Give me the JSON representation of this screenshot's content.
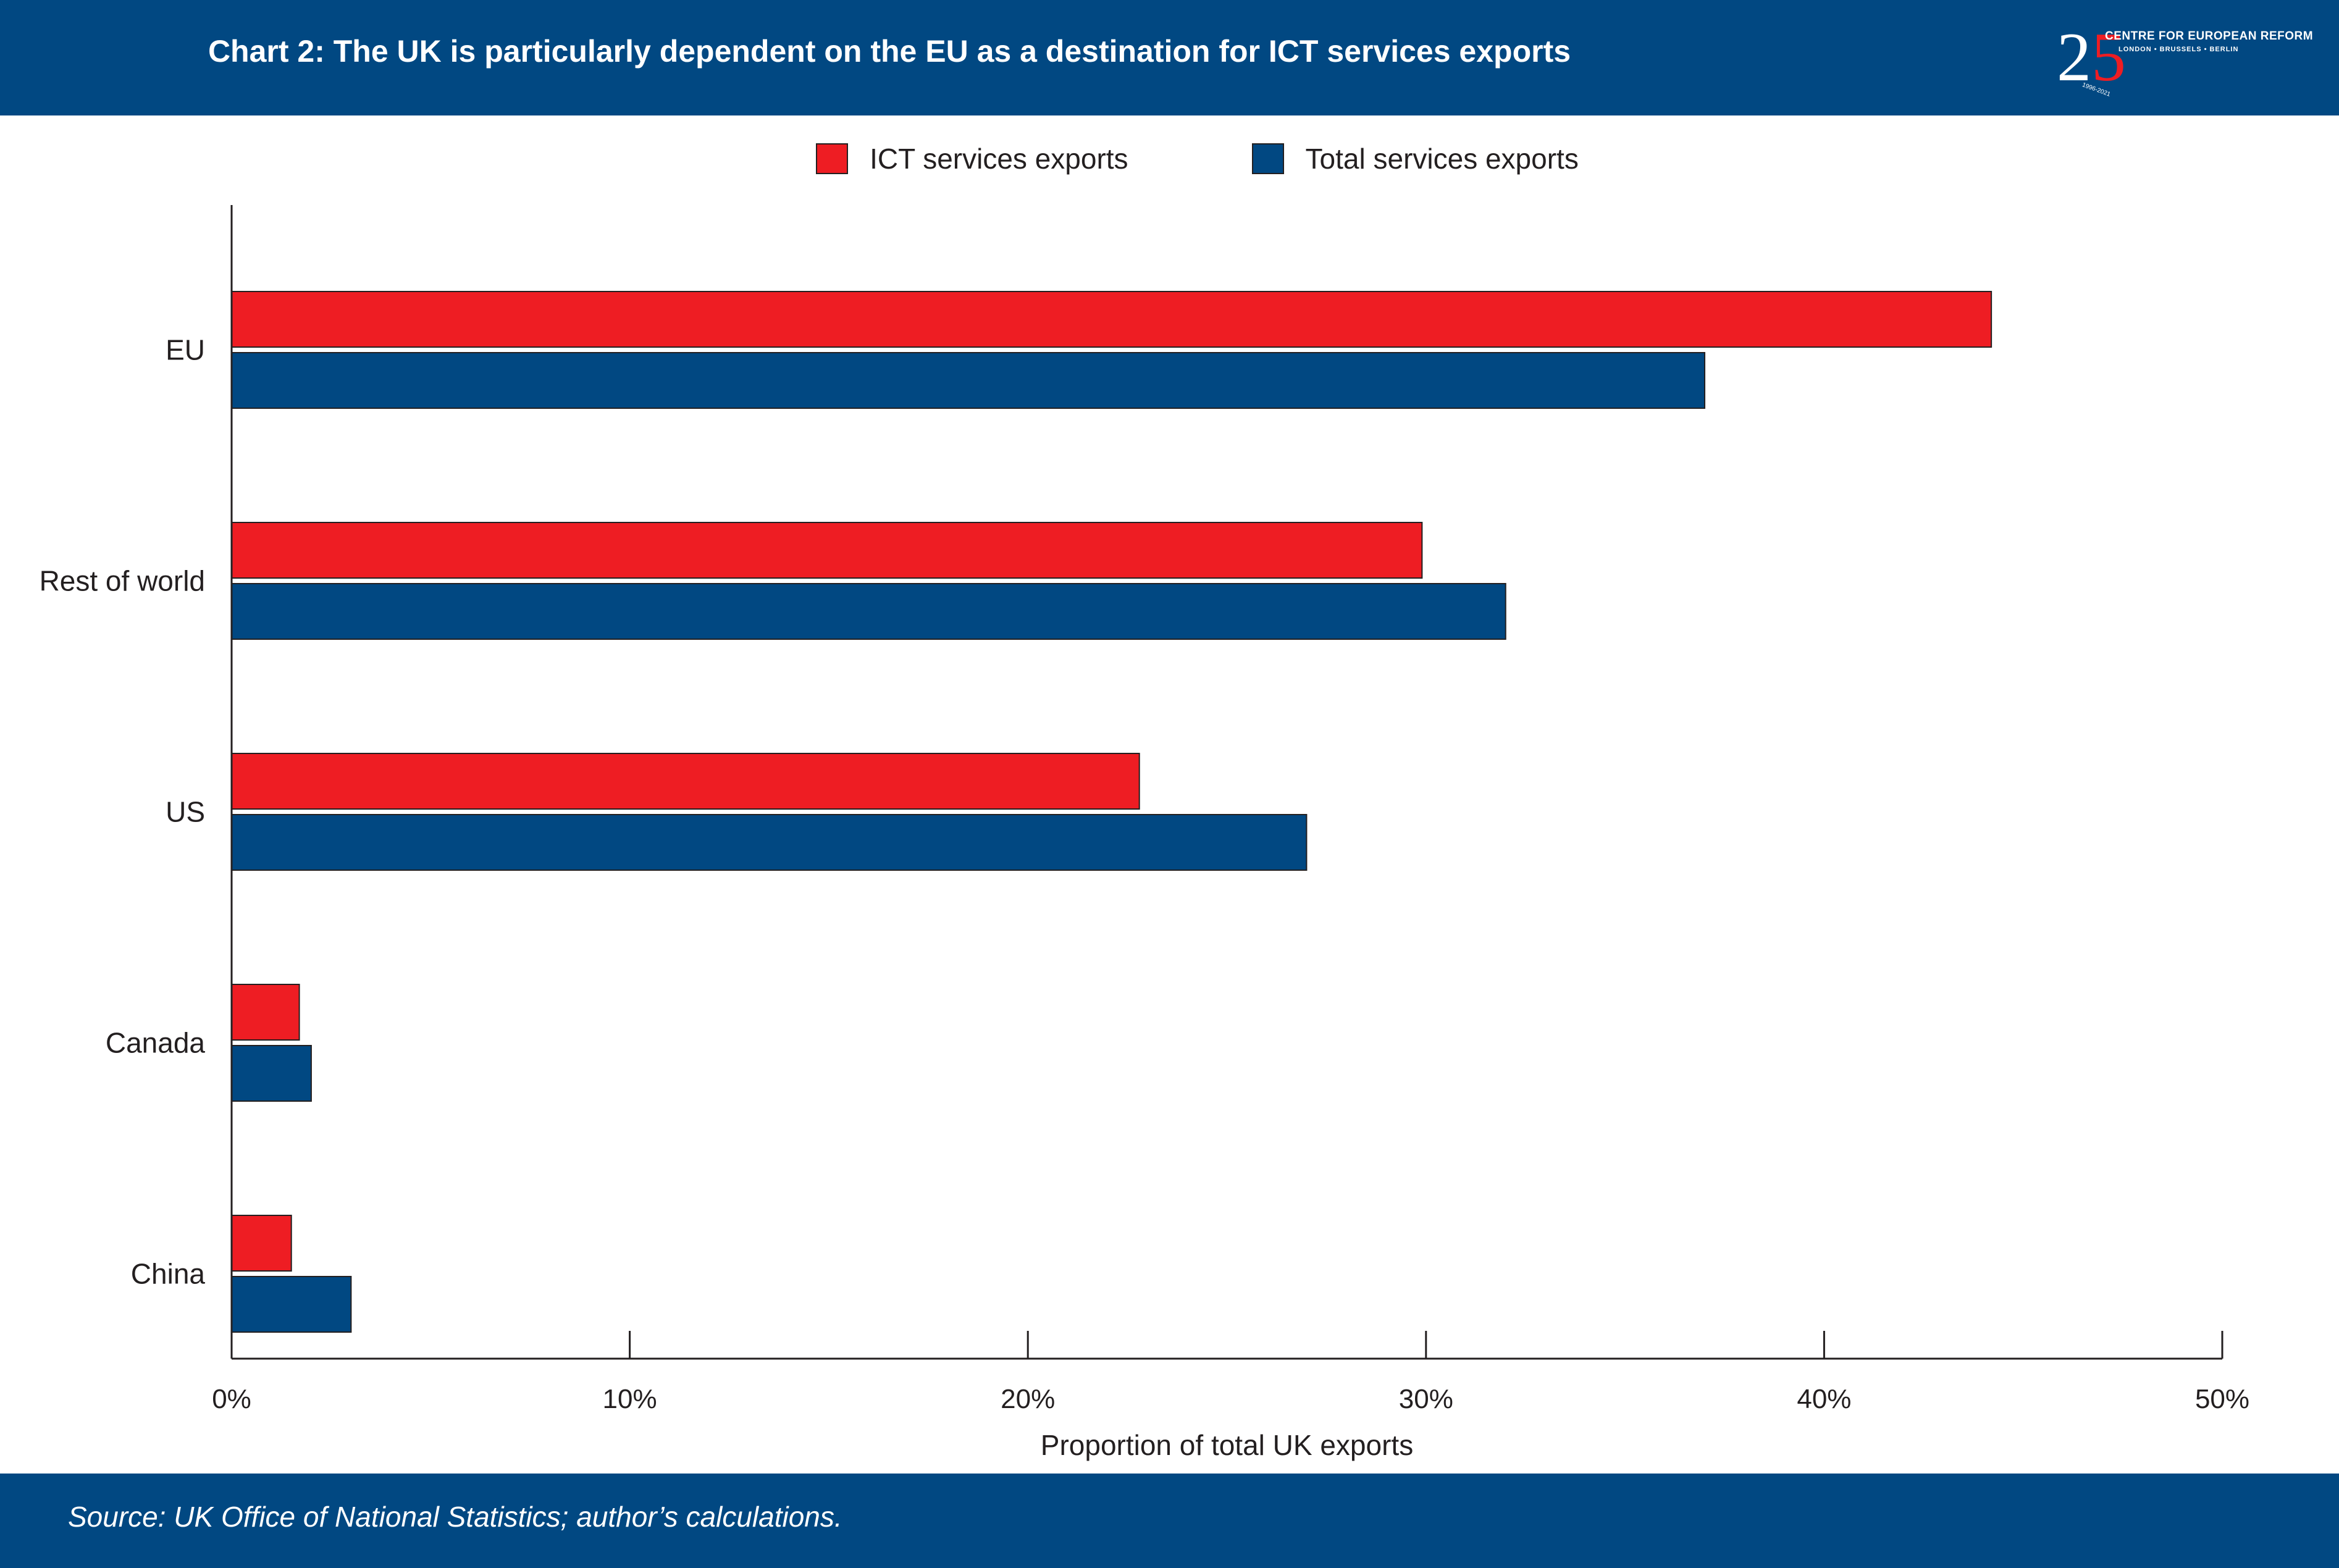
{
  "header": {
    "title": "Chart 2: The UK is particularly dependent on the EU as a destination for ICT services exports"
  },
  "logo": {
    "number_first": "2",
    "number_second": "5",
    "name": "CENTRE FOR EUROPEAN REFORM",
    "cities": "LONDON • BRUSSELS • BERLIN",
    "years": "1996-2021"
  },
  "footer": {
    "source": "Source: UK Office of National Statistics; author’s calculations."
  },
  "colors": {
    "ict": "#ee1d23",
    "total": "#014882",
    "axis": "#231f20"
  },
  "chart_data": {
    "type": "bar",
    "orientation": "horizontal",
    "categories": [
      "EU",
      "Rest of world",
      "US",
      "Canada",
      "China"
    ],
    "series": [
      {
        "name": "ICT services exports",
        "color": "#ee1d23",
        "values": [
          44.2,
          29.9,
          22.8,
          1.7,
          1.5
        ]
      },
      {
        "name": "Total services exports",
        "color": "#014882",
        "values": [
          37.0,
          32.0,
          27.0,
          2.0,
          3.0
        ]
      }
    ],
    "xlabel": "Proportion of total UK exports",
    "xticks": [
      "0%",
      "10%",
      "20%",
      "30%",
      "40%",
      "50%"
    ],
    "xlim": [
      0,
      50
    ],
    "grid": false,
    "legend_position": "top"
  }
}
